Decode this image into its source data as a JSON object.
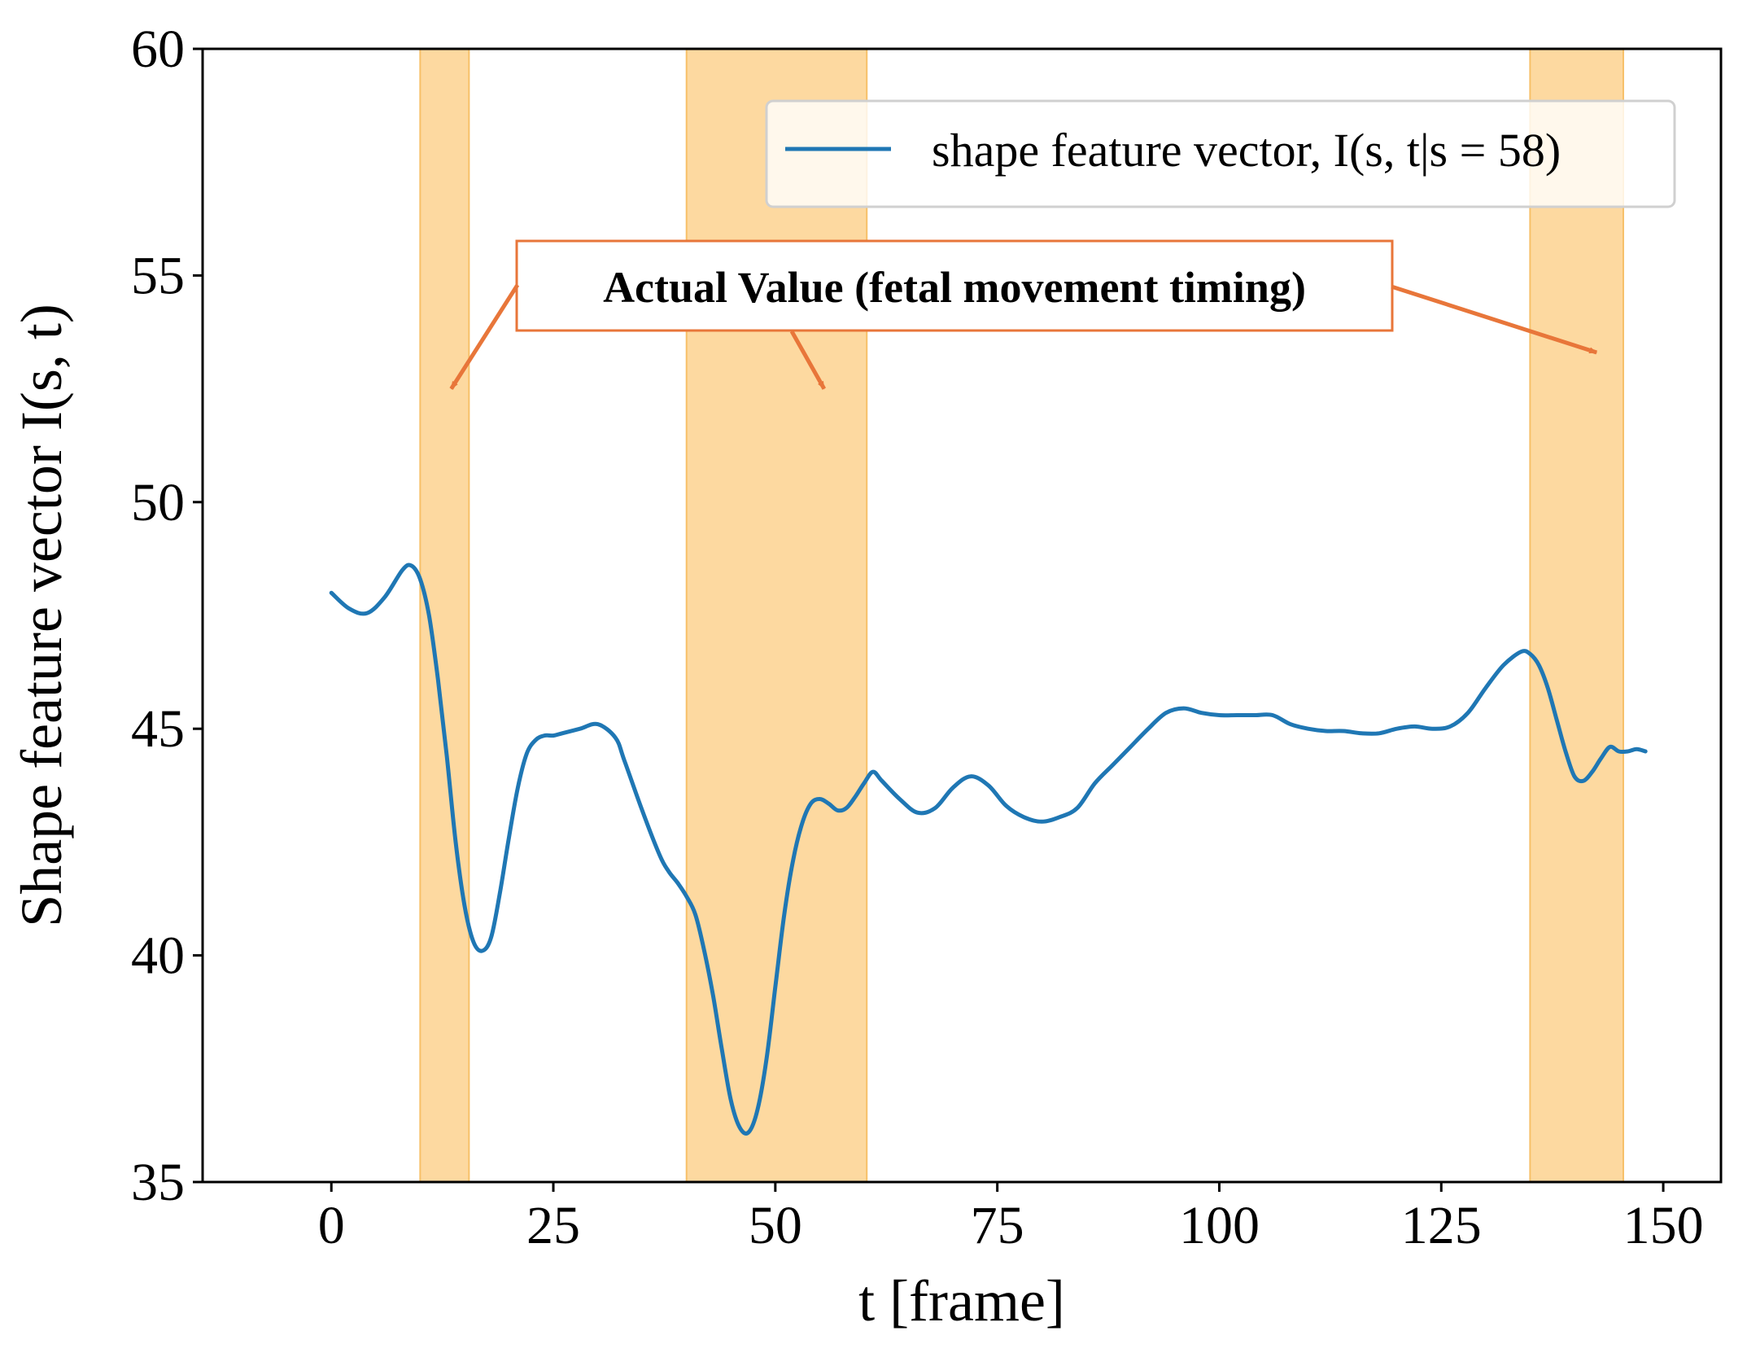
{
  "chart_data": {
    "type": "line",
    "xlabel": "t [frame]",
    "ylabel": "Shape feature vector I(s, t)",
    "xlim": [
      -14.5,
      156.5
    ],
    "ylim": [
      35,
      60
    ],
    "xticks": [
      0,
      25,
      50,
      75,
      100,
      125,
      150
    ],
    "yticks": [
      35,
      40,
      45,
      50,
      55,
      60
    ],
    "grid": false,
    "legend_position": "top-right",
    "colors": {
      "line": "#1f77b4",
      "band": "#fdd9a0",
      "band_edge": "#f7c068",
      "annotation": "#e8763a"
    },
    "series": [
      {
        "name": "shape feature vector, I(s, t|s = 58)",
        "x": [
          0,
          2,
          4,
          6,
          8,
          9,
          10,
          11,
          12,
          13,
          14,
          15,
          16,
          17,
          18,
          19,
          20,
          21,
          22,
          23,
          24,
          25,
          26,
          28,
          30,
          32,
          33,
          35,
          37,
          38,
          39,
          40,
          41,
          42,
          43,
          44,
          45,
          46,
          47,
          48,
          49,
          50,
          51,
          52,
          53,
          54,
          55,
          56,
          57,
          58,
          59,
          60,
          61,
          62,
          64,
          66,
          68,
          70,
          72,
          74,
          76,
          78,
          80,
          82,
          84,
          86,
          88,
          90,
          92,
          94,
          96,
          98,
          100,
          102,
          104,
          106,
          108,
          110,
          112,
          114,
          116,
          118,
          120,
          122,
          124,
          126,
          128,
          130,
          132,
          134,
          135,
          136,
          137,
          138,
          139,
          140,
          141,
          142,
          143,
          144,
          145,
          146,
          147,
          148
        ],
        "y": [
          48.0,
          47.65,
          47.55,
          47.9,
          48.5,
          48.6,
          48.3,
          47.5,
          46.1,
          44.4,
          42.5,
          41.1,
          40.3,
          40.1,
          40.4,
          41.4,
          42.6,
          43.7,
          44.45,
          44.75,
          44.85,
          44.85,
          44.9,
          45.0,
          45.1,
          44.8,
          44.3,
          43.2,
          42.2,
          41.85,
          41.6,
          41.3,
          40.9,
          40.1,
          39.1,
          37.9,
          36.8,
          36.2,
          36.1,
          36.6,
          37.7,
          39.3,
          40.9,
          42.1,
          42.9,
          43.35,
          43.45,
          43.35,
          43.2,
          43.25,
          43.5,
          43.8,
          44.05,
          43.85,
          43.45,
          43.15,
          43.25,
          43.7,
          43.95,
          43.75,
          43.3,
          43.05,
          42.95,
          43.05,
          43.25,
          43.8,
          44.2,
          44.6,
          45.0,
          45.35,
          45.45,
          45.35,
          45.3,
          45.3,
          45.3,
          45.3,
          45.1,
          45.0,
          44.95,
          44.95,
          44.9,
          44.9,
          45.0,
          45.05,
          45.0,
          45.05,
          45.35,
          45.9,
          46.4,
          46.7,
          46.65,
          46.4,
          45.9,
          45.2,
          44.5,
          43.95,
          43.85,
          44.05,
          44.35,
          44.6,
          44.5,
          44.5,
          44.55,
          44.5
        ]
      }
    ],
    "bands": [
      {
        "x_start": 10,
        "x_end": 15.5
      },
      {
        "x_start": 40,
        "x_end": 60.3
      },
      {
        "x_start": 135,
        "x_end": 145.5
      }
    ],
    "annotation": {
      "text": "Actual Value (fetal movement timing)",
      "targets": [
        {
          "x": 13.5,
          "y": 52.5
        },
        {
          "x": 55.5,
          "y": 52.5
        },
        {
          "x": 142.5,
          "y": 53.3
        }
      ]
    }
  }
}
